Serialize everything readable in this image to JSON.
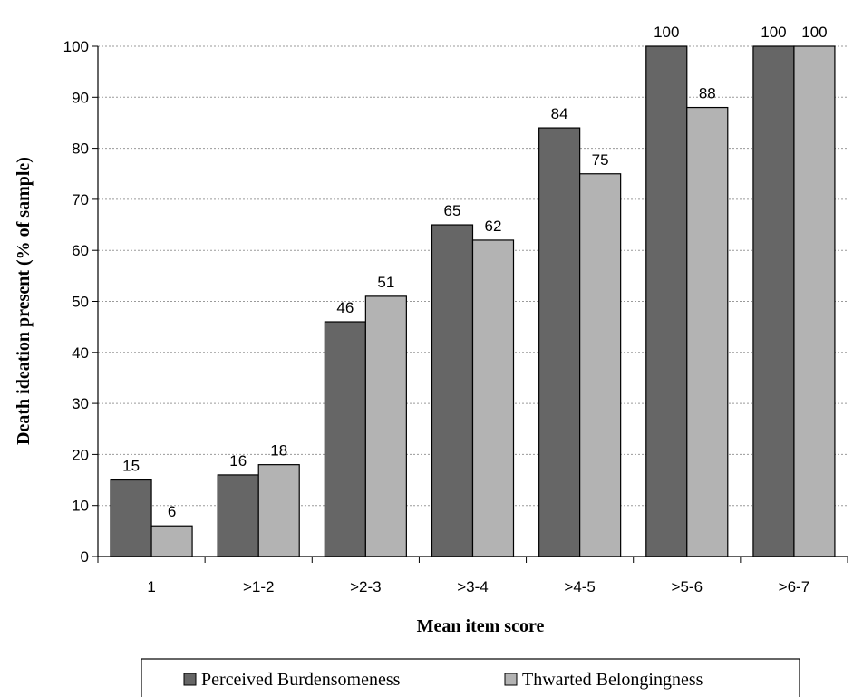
{
  "chart_data": {
    "type": "bar",
    "categories": [
      "1",
      ">1-2",
      ">2-3",
      ">3-4",
      ">4-5",
      ">5-6",
      ">6-7"
    ],
    "series": [
      {
        "name": "Perceived Burdensomeness",
        "values": [
          15,
          16,
          46,
          65,
          84,
          100,
          100
        ],
        "color": "#666666"
      },
      {
        "name": "Thwarted Belongingness",
        "values": [
          6,
          18,
          51,
          62,
          75,
          88,
          100
        ],
        "color": "#b3b3b3"
      }
    ],
    "xlabel": "Mean item score",
    "ylabel": "Death  ideation present (% of sample)",
    "ylim": [
      0,
      100
    ],
    "yticks": [
      0,
      10,
      20,
      30,
      40,
      50,
      60,
      70,
      80,
      90,
      100
    ],
    "grid": "horizontal dotted",
    "legend": "bottom"
  }
}
